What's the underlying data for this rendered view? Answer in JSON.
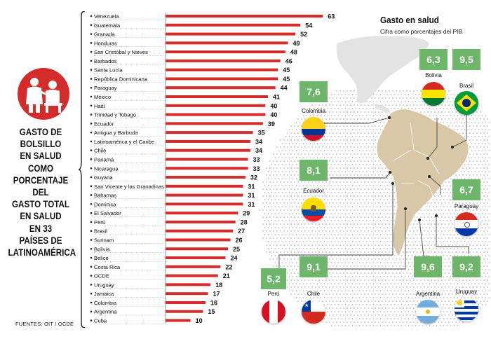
{
  "side_title": "GASTO DE BOLSILLO EN SALUD COMO PORCENTAJE DEL GASTO TOTAL EN SALUD EN 33 PAÍSES DE LATINOAMÉRICA",
  "side_title_lines": [
    "GASTO DE",
    "BOLSILLO",
    "EN SALUD COMO",
    "PORCENTAJE DEL",
    "GASTO TOTAL",
    "EN SALUD",
    "EN 33",
    "PAÍSES DE",
    "LATINOAMÉRICA"
  ],
  "source": "FUENTES: OIT / OCDE",
  "colors": {
    "bar": "#d42b2b",
    "box": "#6eb66a",
    "land": "#d9c8a8",
    "land_bg": "#e8e8e8",
    "dots": "#bbbbbb"
  },
  "icons": [
    "doctor-patient-icon"
  ],
  "chart_data": {
    "type": "bar",
    "orientation": "horizontal",
    "categories": [
      "Venezuela",
      "Guatemala",
      "Granada",
      "Honduras",
      "San Cristóbal y Nieves",
      "Barbados",
      "Santa Lucía",
      "República Dominicana",
      "Paraguay",
      "México",
      "Haití",
      "Trinidad y Tobago",
      "Ecuador",
      "Antigua y Barbuda",
      "Latinoamérica y el Caribe",
      "Chile",
      "Panamá",
      "Nicaragua",
      "Guyana",
      "San Vicente y las Granadinas",
      "Bahamas",
      "Dominica",
      "El Salvador",
      "Perú",
      "Brasil",
      "Surinam",
      "Bolivia",
      "Belice",
      "Costa Rica",
      "OCDE",
      "Uruguay",
      "Jamaica",
      "Colombia",
      "Argentina",
      "Cuba"
    ],
    "values": [
      63,
      54,
      52,
      49,
      48,
      46,
      45,
      45,
      44,
      41,
      40,
      40,
      39,
      35,
      34,
      34,
      33,
      33,
      32,
      31,
      31,
      31,
      29,
      28,
      27,
      26,
      25,
      24,
      22,
      21,
      18,
      17,
      16,
      15,
      10
    ],
    "grid": false
  },
  "map_panel": {
    "title": "Gasto en salud",
    "subtitle": "Cifra como porcentajes del PIB",
    "countries": [
      {
        "name": "Colombia",
        "value": "7,6",
        "flag": "colombia-flag-icon"
      },
      {
        "name": "Bolivia",
        "value": "6,3",
        "flag": "bolivia-flag-icon"
      },
      {
        "name": "Brasil",
        "value": "9,5",
        "flag": "brazil-flag-icon"
      },
      {
        "name": "Ecuador",
        "value": "8,1",
        "flag": "ecuador-flag-icon"
      },
      {
        "name": "Paraguay",
        "value": "6,7",
        "flag": "paraguay-flag-icon"
      },
      {
        "name": "Perú",
        "value": "5,2",
        "flag": "peru-flag-icon"
      },
      {
        "name": "Chile",
        "value": "9,1",
        "flag": "chile-flag-icon"
      },
      {
        "name": "Argentina",
        "value": "9,6",
        "flag": "argentina-flag-icon"
      },
      {
        "name": "Uruguay",
        "value": "9,2",
        "flag": "uruguay-flag-icon"
      }
    ]
  }
}
